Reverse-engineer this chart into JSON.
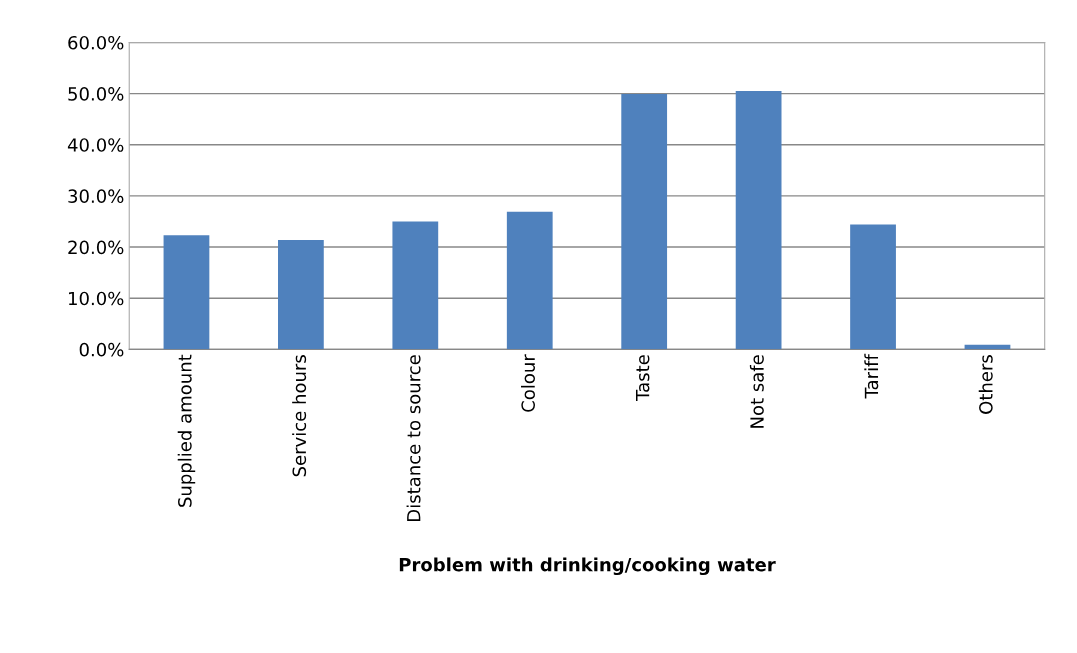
{
  "chart_data": {
    "type": "bar",
    "xlabel": "Problem with drinking/cooking water",
    "categories": [
      "Supplied amount",
      "Service hours",
      "Distance to source",
      "Colour",
      "Taste",
      "Not safe",
      "Tariff",
      "Others"
    ],
    "values": [
      22.3,
      21.4,
      25.0,
      26.9,
      49.9,
      50.5,
      24.4,
      0.9
    ],
    "color": "#4f81bd",
    "ylim": [
      0,
      60
    ],
    "yticks": [
      {
        "value": 0,
        "label": "0.0%"
      },
      {
        "value": 10,
        "label": "10.0%"
      },
      {
        "value": 20,
        "label": "20.0%"
      },
      {
        "value": 30,
        "label": "30.0%"
      },
      {
        "value": 40,
        "label": "40.0%"
      },
      {
        "value": 50,
        "label": "50.0%"
      },
      {
        "value": 60,
        "label": "60.0%"
      }
    ],
    "grid": "y"
  }
}
